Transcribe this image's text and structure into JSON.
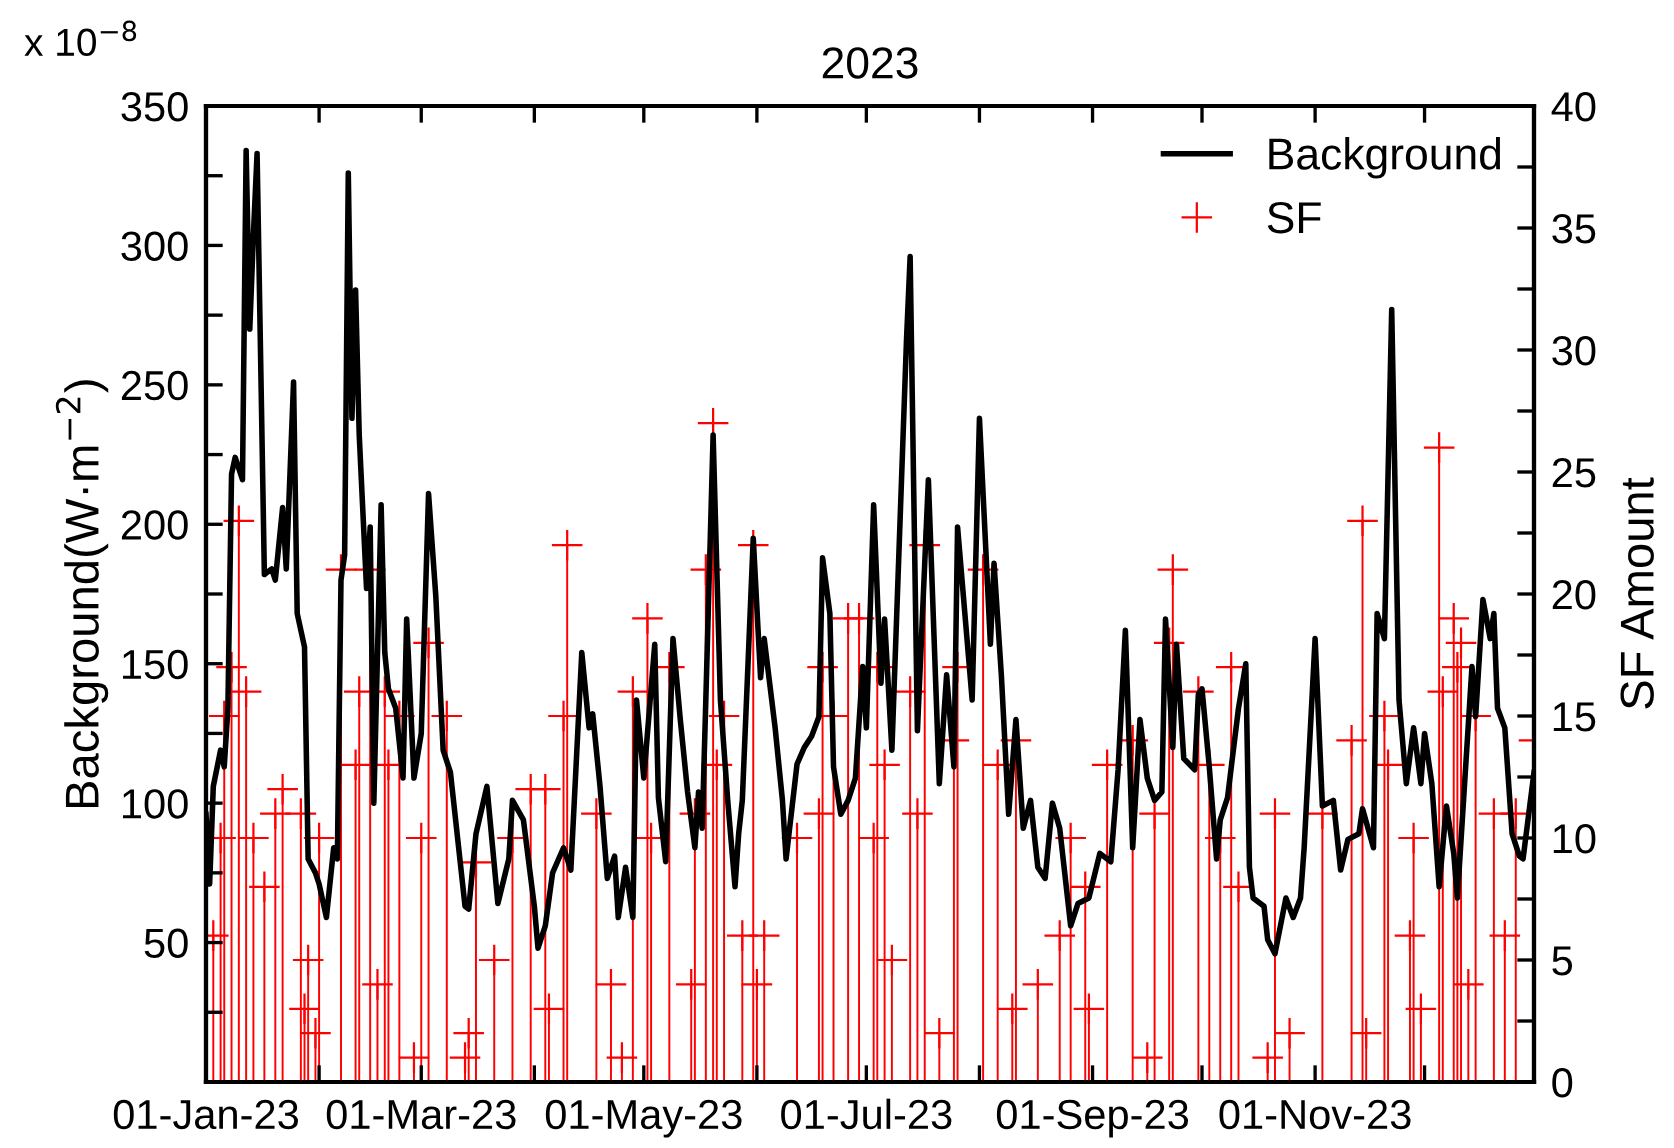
{
  "chart_data": {
    "type": "line",
    "title": "2023",
    "ylabel": "Background(W·m$^{−2}$)",
    "y2label": "SF Amount",
    "annotations": [
      "x 10$^{−8}$"
    ],
    "xlim": [
      "2023-01-01",
      "2023-12-31"
    ],
    "xticks": [
      {
        "value": "2023-01-01",
        "label": "01-Jan-23"
      },
      {
        "value": "2023-02-01",
        "label": null
      },
      {
        "value": "2023-03-01",
        "label": "01-Mar-23"
      },
      {
        "value": "2023-04-01",
        "label": null
      },
      {
        "value": "2023-05-01",
        "label": "01-May-23"
      },
      {
        "value": "2023-06-01",
        "label": null
      },
      {
        "value": "2023-07-01",
        "label": "01-Jul-23"
      },
      {
        "value": "2023-08-01",
        "label": null
      },
      {
        "value": "2023-09-01",
        "label": "01-Sep-23"
      },
      {
        "value": "2023-10-01",
        "label": null
      },
      {
        "value": "2023-11-01",
        "label": "01-Nov-23"
      },
      {
        "value": "2023-12-01",
        "label": null
      }
    ],
    "ylim": [
      0,
      350
    ],
    "yticks": [
      {
        "value": 25,
        "label": null
      },
      50,
      {
        "value": 75,
        "label": null
      },
      100,
      {
        "value": 125,
        "label": null
      },
      150,
      {
        "value": 175,
        "label": null
      },
      200,
      {
        "value": 225,
        "label": null
      },
      250,
      {
        "value": 275,
        "label": null
      },
      300,
      {
        "value": 325,
        "label": null
      },
      350
    ],
    "y2lim": [
      0,
      40
    ],
    "y2ticks": [
      0,
      {
        "value": 2.5,
        "label": null
      },
      5,
      {
        "value": 7.5,
        "label": null
      },
      10,
      {
        "value": 12.5,
        "label": null
      },
      15,
      {
        "value": 17.5,
        "label": null
      },
      20,
      {
        "value": 22.5,
        "label": null
      },
      25,
      {
        "value": 27.5,
        "label": null
      },
      30,
      {
        "value": 32.5,
        "label": null
      },
      35,
      {
        "value": 37.5,
        "label": null
      },
      40
    ],
    "legend": "top right",
    "grid": false,
    "series": [
      {
        "name": "Background",
        "color": "#000000",
        "marker": "none",
        "line_style": "solid",
        "x": [
          "2023-01-01",
          "2023-01-02",
          "2023-01-03",
          "2023-01-05",
          "2023-01-06",
          "2023-01-07",
          "2023-01-08",
          "2023-01-09",
          "2023-01-11",
          "2023-01-12",
          "2023-01-13",
          "2023-01-14",
          "2023-01-15",
          "2023-01-17",
          "2023-01-19",
          "2023-01-20",
          "2023-01-22",
          "2023-01-23",
          "2023-01-25",
          "2023-01-26",
          "2023-01-28",
          "2023-01-29",
          "2023-01-31",
          "2023-02-01",
          "2023-02-03",
          "2023-02-05",
          "2023-02-06",
          "2023-02-07",
          "2023-02-08",
          "2023-02-09",
          "2023-02-10",
          "2023-02-11",
          "2023-02-12",
          "2023-02-14",
          "2023-02-15",
          "2023-02-16",
          "2023-02-18",
          "2023-02-19",
          "2023-02-20",
          "2023-02-22",
          "2023-02-24",
          "2023-02-25",
          "2023-02-27",
          "2023-03-01",
          "2023-03-03",
          "2023-03-05",
          "2023-03-07",
          "2023-03-09",
          "2023-03-13",
          "2023-03-14",
          "2023-03-16",
          "2023-03-19",
          "2023-03-22",
          "2023-03-25",
          "2023-03-26",
          "2023-03-29",
          "2023-04-01",
          "2023-04-02",
          "2023-04-04",
          "2023-04-06",
          "2023-04-09",
          "2023-04-11",
          "2023-04-14",
          "2023-04-16",
          "2023-04-17",
          "2023-04-19",
          "2023-04-21",
          "2023-04-23",
          "2023-04-24",
          "2023-04-26",
          "2023-04-28",
          "2023-04-29",
          "2023-05-01",
          "2023-05-04",
          "2023-05-05",
          "2023-05-07",
          "2023-05-09",
          "2023-05-11",
          "2023-05-13",
          "2023-05-15",
          "2023-05-16",
          "2023-05-17",
          "2023-05-18",
          "2023-05-20",
          "2023-05-22",
          "2023-05-24",
          "2023-05-26",
          "2023-05-27",
          "2023-05-28",
          "2023-05-31",
          "2023-06-02",
          "2023-06-03",
          "2023-06-06",
          "2023-06-08",
          "2023-06-09",
          "2023-06-12",
          "2023-06-14",
          "2023-06-16",
          "2023-06-18",
          "2023-06-19",
          "2023-06-21",
          "2023-06-22",
          "2023-06-24",
          "2023-06-26",
          "2023-06-28",
          "2023-06-30",
          "2023-07-01",
          "2023-07-03",
          "2023-07-05",
          "2023-07-06",
          "2023-07-08",
          "2023-07-12",
          "2023-07-13",
          "2023-07-15",
          "2023-07-18",
          "2023-07-21",
          "2023-07-23",
          "2023-07-25",
          "2023-07-26",
          "2023-07-30",
          "2023-08-01",
          "2023-08-04",
          "2023-08-05",
          "2023-08-07",
          "2023-08-09",
          "2023-08-11",
          "2023-08-13",
          "2023-08-15",
          "2023-08-17",
          "2023-08-19",
          "2023-08-21",
          "2023-08-23",
          "2023-08-26",
          "2023-08-28",
          "2023-08-31",
          "2023-09-03",
          "2023-09-06",
          "2023-09-08",
          "2023-09-10",
          "2023-09-12",
          "2023-09-14",
          "2023-09-16",
          "2023-09-18",
          "2023-09-20",
          "2023-09-21",
          "2023-09-23",
          "2023-09-24",
          "2023-09-26",
          "2023-09-29",
          "2023-09-30",
          "2023-10-01",
          "2023-10-03",
          "2023-10-05",
          "2023-10-06",
          "2023-10-08",
          "2023-10-11",
          "2023-10-13",
          "2023-10-14",
          "2023-10-15",
          "2023-10-18",
          "2023-10-19",
          "2023-10-21",
          "2023-10-24",
          "2023-10-26",
          "2023-10-28",
          "2023-10-29",
          "2023-11-01",
          "2023-11-03",
          "2023-11-06",
          "2023-11-08",
          "2023-11-10",
          "2023-11-13",
          "2023-11-14",
          "2023-11-17",
          "2023-11-18",
          "2023-11-20",
          "2023-11-22",
          "2023-11-24",
          "2023-11-26",
          "2023-11-28",
          "2023-11-30",
          "2023-12-01",
          "2023-12-03",
          "2023-12-05",
          "2023-12-07",
          "2023-12-09",
          "2023-12-10",
          "2023-12-14",
          "2023-12-15",
          "2023-12-17",
          "2023-12-19",
          "2023-12-20",
          "2023-12-21",
          "2023-12-23",
          "2023-12-25",
          "2023-12-27",
          "2023-12-28",
          "2023-12-31"
        ],
        "values": [
          96,
          71,
          106,
          119,
          113,
          134,
          218,
          224,
          216,
          334,
          270,
          304,
          333,
          182,
          184,
          180,
          206,
          184,
          251,
          168,
          156,
          80,
          75,
          71,
          59,
          84,
          80,
          180,
          189,
          326,
          238,
          284,
          232,
          177,
          199,
          100,
          207,
          154,
          141,
          134,
          109,
          166,
          109,
          125,
          211,
          174,
          119,
          111,
          63,
          62,
          89,
          106,
          64,
          80,
          101,
          94,
          63,
          48,
          56,
          75,
          84,
          76,
          154,
          127,
          132,
          106,
          73,
          81,
          59,
          77,
          59,
          137,
          109,
          157,
          102,
          79,
          159,
          130,
          104,
          84,
          104,
          91,
          137,
          232,
          137,
          101,
          70,
          89,
          101,
          195,
          145,
          159,
          127,
          101,
          80,
          114,
          120,
          124,
          131,
          188,
          168,
          113,
          96,
          101,
          109,
          149,
          127,
          207,
          143,
          166,
          119,
          266,
          296,
          126,
          216,
          107,
          146,
          113,
          199,
          137,
          238,
          157,
          186,
          146,
          96,
          130,
          91,
          101,
          77,
          73,
          100,
          91,
          56,
          64,
          66,
          82,
          79,
          112,
          162,
          84,
          130,
          109,
          101,
          104,
          166,
          120,
          157,
          116,
          112,
          139,
          141,
          113,
          80,
          94,
          102,
          134,
          150,
          77,
          66,
          63,
          51,
          46,
          66,
          59,
          66,
          84,
          159,
          99,
          101,
          76,
          87,
          89,
          98,
          84,
          168,
          159,
          277,
          137,
          107,
          127,
          107,
          125,
          107,
          70,
          99,
          82,
          66,
          149,
          131,
          173,
          159,
          168,
          134,
          127,
          89,
          81,
          80,
          111
        ]
      },
      {
        "name": "SF",
        "type": "lollipop",
        "axis": "y2",
        "color": "#ff0000",
        "marker": "cross",
        "x": [
          "2023-01-03",
          "2023-01-05",
          "2023-01-06",
          "2023-01-08",
          "2023-01-10",
          "2023-01-12",
          "2023-01-14",
          "2023-01-17",
          "2023-01-20",
          "2023-01-22",
          "2023-01-27",
          "2023-01-28",
          "2023-01-29",
          "2023-01-31",
          "2023-02-01",
          "2023-02-07",
          "2023-02-11",
          "2023-02-12",
          "2023-02-15",
          "2023-02-17",
          "2023-02-19",
          "2023-02-20",
          "2023-02-23",
          "2023-02-27",
          "2023-03-01",
          "2023-03-03",
          "2023-03-08",
          "2023-03-13",
          "2023-03-14",
          "2023-03-16",
          "2023-03-21",
          "2023-03-26",
          "2023-03-31",
          "2023-04-04",
          "2023-04-05",
          "2023-04-09",
          "2023-04-10",
          "2023-04-18",
          "2023-04-22",
          "2023-04-25",
          "2023-04-28",
          "2023-05-02",
          "2023-05-03",
          "2023-05-08",
          "2023-05-14",
          "2023-05-15",
          "2023-05-18",
          "2023-05-20",
          "2023-05-21",
          "2023-05-23",
          "2023-05-28",
          "2023-05-31",
          "2023-06-01",
          "2023-06-03",
          "2023-06-12",
          "2023-06-18",
          "2023-06-19",
          "2023-06-22",
          "2023-06-26",
          "2023-06-29",
          "2023-07-03",
          "2023-07-04",
          "2023-07-06",
          "2023-07-08",
          "2023-07-13",
          "2023-07-15",
          "2023-07-17",
          "2023-07-21",
          "2023-07-25",
          "2023-07-26",
          "2023-08-02",
          "2023-08-06",
          "2023-08-10",
          "2023-08-11",
          "2023-08-17",
          "2023-08-23",
          "2023-08-26",
          "2023-08-30",
          "2023-08-31",
          "2023-09-05",
          "2023-09-12",
          "2023-09-16",
          "2023-09-18",
          "2023-09-22",
          "2023-09-23",
          "2023-09-30",
          "2023-10-03",
          "2023-10-06",
          "2023-10-09",
          "2023-10-11",
          "2023-10-19",
          "2023-10-21",
          "2023-10-25",
          "2023-11-03",
          "2023-11-11",
          "2023-11-14",
          "2023-11-15",
          "2023-11-20",
          "2023-11-21",
          "2023-11-27",
          "2023-11-28",
          "2023-11-30",
          "2023-12-05",
          "2023-12-06",
          "2023-12-09",
          "2023-12-10",
          "2023-12-11",
          "2023-12-13",
          "2023-12-15",
          "2023-12-20",
          "2023-12-23",
          "2023-12-26",
          "2023-12-31"
        ],
        "values": [
          6,
          10,
          15,
          17,
          23,
          16,
          10,
          8,
          11,
          12,
          11,
          3,
          5,
          2,
          10,
          21,
          13,
          16,
          21,
          4,
          16,
          13,
          15,
          1,
          10,
          18,
          15,
          1,
          2,
          9,
          5,
          10,
          12,
          12,
          3,
          15,
          22,
          11,
          4,
          1,
          16,
          19,
          10,
          17,
          4,
          11,
          21,
          27,
          13,
          15,
          6,
          22,
          4,
          6,
          10,
          11,
          17,
          15,
          19,
          19,
          10,
          17,
          13,
          5,
          16,
          11,
          22,
          2,
          14,
          17,
          21,
          13,
          3,
          14,
          4,
          6,
          10,
          8,
          3,
          13,
          14,
          1,
          11,
          18,
          21,
          16,
          13,
          10,
          17,
          8,
          1,
          11,
          2,
          11,
          14,
          23,
          2,
          15,
          13,
          6,
          10,
          3,
          26,
          16,
          19,
          17,
          18,
          4,
          15,
          11,
          6,
          11,
          14
        ]
      }
    ]
  }
}
